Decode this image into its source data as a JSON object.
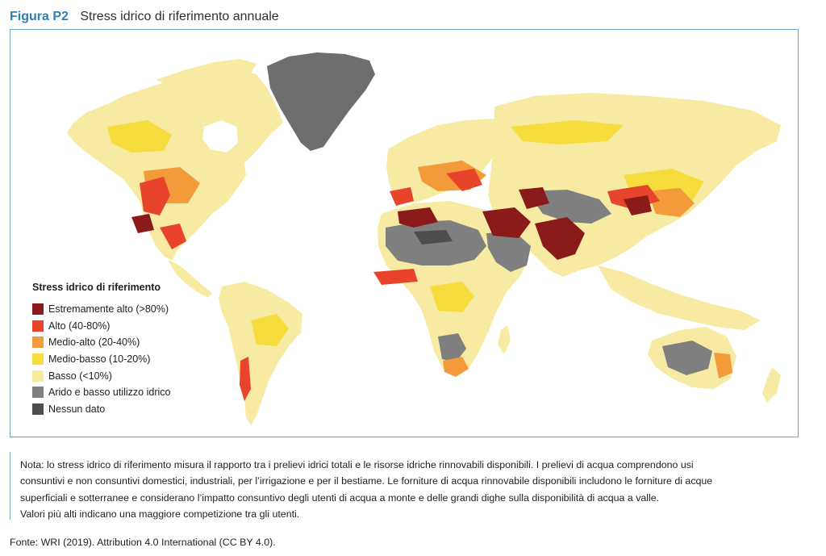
{
  "figure": {
    "number": "Figura P2",
    "title": "Stress idrico di riferimento annuale"
  },
  "legend": {
    "title": "Stress idrico di riferimento",
    "items": [
      {
        "label": "Estremamente alto (>80%)",
        "color": "#8b1a1a"
      },
      {
        "label": "Alto (40-80%)",
        "color": "#e8432b"
      },
      {
        "label": "Medio-alto (20-40%)",
        "color": "#f39a3a"
      },
      {
        "label": "Medio-basso (10-20%)",
        "color": "#f6dc3d"
      },
      {
        "label": "Basso (<10%)",
        "color": "#f7eba4"
      },
      {
        "label": "Arido e basso utilizzo idrico",
        "color": "#7f7f7f"
      },
      {
        "label": "Nessun dato",
        "color": "#4d4d4d"
      }
    ]
  },
  "note": {
    "lines": [
      "Nota: lo stress idrico di riferimento misura il rapporto tra i prelievi idrici totali e le risorse idriche rinnovabili disponibili. I prelievi di acqua comprendono usi",
      "consuntivi e non consuntivi domestici, industriali, per l’irrigazione e per il bestiame. Le forniture di acqua rinnovabile disponibili includono le forniture di acque",
      "superficiali e sotterranee e considerano l’impatto consuntivo degli utenti di acqua a monte e delle grandi dighe sulla disponibilità di acqua a valle.",
      "Valori più alti indicano una maggiore competizione tra gli utenti."
    ]
  },
  "source": "Fonte: WRI (2019). Attribution 4.0 International (CC BY 4.0)."
}
